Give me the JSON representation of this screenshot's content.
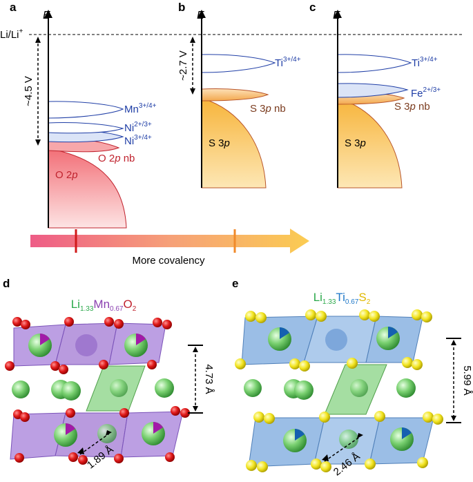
{
  "panels": {
    "a": "a",
    "b": "b",
    "c": "c",
    "d": "d",
    "e": "e"
  },
  "axis_label": "E",
  "reference_line": {
    "label": "Li/Li",
    "sup": "+"
  },
  "panel_a": {
    "voltage": "~4.5 V",
    "bands": [
      {
        "name": "Mn",
        "sup": "3+/4+"
      },
      {
        "name": "Ni",
        "sup": "2+/3+"
      },
      {
        "name": "Ni",
        "sup": "3+/4+"
      }
    ],
    "o2p_nb": {
      "text": "O 2",
      "ital": "p",
      "tail": " nb"
    },
    "o2p": {
      "text": "O 2",
      "ital": "p"
    }
  },
  "panel_b": {
    "voltage": "~2.7 V",
    "ti": {
      "name": "Ti",
      "sup": "3+/4+"
    },
    "s3p_nb": {
      "text": "S 3",
      "ital": "p",
      "tail": " nb"
    },
    "s3p": {
      "text": "S 3",
      "ital": "p"
    }
  },
  "panel_c": {
    "ti": {
      "name": "Ti",
      "sup": "3+/4+"
    },
    "fe": {
      "name": "Fe",
      "sup": "2+/3+"
    },
    "s3p_nb": {
      "text": "S 3",
      "ital": "p",
      "tail": " nb"
    },
    "s3p": {
      "text": "S 3",
      "ital": "p"
    }
  },
  "covalency_arrow": {
    "label": "More covalency"
  },
  "panel_d": {
    "formula": [
      {
        "el": "Li",
        "sub": "1.33",
        "color": "#2aa84a"
      },
      {
        "el": "Mn",
        "sub": "0.67",
        "color": "#8a3fb0"
      },
      {
        "el": "O",
        "sub": "2",
        "color": "#c0232e"
      }
    ],
    "interlayer": "4.73 Å",
    "bond": "1.89 Å"
  },
  "panel_e": {
    "formula": [
      {
        "el": "Li",
        "sub": "1.33",
        "color": "#2aa84a"
      },
      {
        "el": "Ti",
        "sub": "0.67",
        "color": "#1f78c8"
      },
      {
        "el": "S",
        "sub": "2",
        "color": "#e0b800"
      }
    ],
    "interlayer": "5.99 Å",
    "bond": "2.46 Å"
  },
  "colors": {
    "ox_red": "#f27a7a",
    "sulfur_orange": "#f6b23a",
    "band_blue": "#1f3ea6",
    "octa_purple": "#9b6fd0",
    "octa_blue": "#7aa8de",
    "octa_green": "#7fd07a",
    "li_green": "#5cc05c",
    "o_atom": "#d41a1a",
    "s_atom": "#f0e020"
  }
}
